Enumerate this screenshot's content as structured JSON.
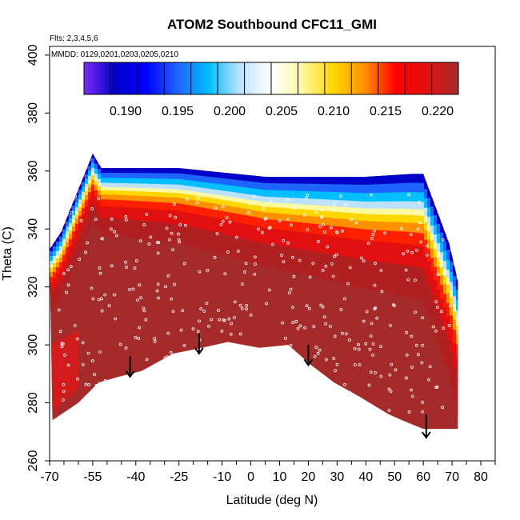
{
  "chart_data": {
    "type": "heatmap",
    "title": "ATOM2 Southbound CFC11_GMI",
    "notes": [
      "Flts: 2,3,4,5,6",
      "MMDD: 0129,0201,0203,0205,0210"
    ],
    "xlabel": "Latitude (deg N)",
    "ylabel": "Theta (C)",
    "xlim": [
      -70,
      85
    ],
    "ylim": [
      260,
      403
    ],
    "x_ticks": [
      -70,
      -55,
      -40,
      -25,
      -10,
      0,
      10,
      20,
      30,
      40,
      50,
      60,
      70,
      80
    ],
    "x_minor_ticks": [
      -65,
      -60,
      -50,
      -45,
      -35,
      -30,
      -20,
      -15,
      -5,
      5,
      15,
      25,
      35,
      45,
      55,
      65,
      75,
      85
    ],
    "y_ticks": [
      260,
      280,
      300,
      320,
      340,
      360,
      380,
      400
    ],
    "colorbar": {
      "range": [
        0.186,
        0.222
      ],
      "ticks": [
        0.19,
        0.195,
        0.2,
        0.205,
        0.21,
        0.215,
        0.22
      ],
      "tick_labels": [
        "0.190",
        "0.195",
        "0.200",
        "0.205",
        "0.210",
        "0.215",
        "0.220"
      ],
      "colors": [
        "#7b2cf6",
        "#0000c8",
        "#0000ff",
        "#1e64ff",
        "#00bfff",
        "#bde2ff",
        "#ffffff",
        "#fff9a0",
        "#ffd700",
        "#ff9000",
        "#ff0000",
        "#e01010",
        "#a52a2a"
      ]
    },
    "surface_boundary": [
      [
        -69,
        274
      ],
      [
        -60,
        280
      ],
      [
        -53,
        287
      ],
      [
        -46,
        289
      ],
      [
        -38,
        291
      ],
      [
        -27,
        297
      ],
      [
        -17,
        299
      ],
      [
        -8,
        301
      ],
      [
        3,
        299
      ],
      [
        13,
        300
      ],
      [
        21,
        293
      ],
      [
        29,
        287
      ],
      [
        38,
        282
      ],
      [
        48,
        276
      ],
      [
        55,
        273
      ],
      [
        60,
        271
      ],
      [
        72,
        271
      ]
    ],
    "top_boundary": [
      [
        -70,
        333
      ],
      [
        -66,
        339
      ],
      [
        -57,
        361
      ],
      [
        -55,
        366
      ],
      [
        -52,
        361
      ],
      [
        -47,
        361
      ],
      [
        -25,
        361
      ],
      [
        5,
        358
      ],
      [
        40,
        358
      ],
      [
        56,
        359
      ],
      [
        60,
        359
      ],
      [
        69,
        335
      ],
      [
        72,
        322
      ]
    ],
    "flight_arrows": [
      {
        "lat": -42,
        "theta_top": 296,
        "theta_bottom": 289
      },
      {
        "lat": -18,
        "theta_top": 304,
        "theta_bottom": 297
      },
      {
        "lat": 20,
        "theta_top": 300,
        "theta_bottom": 293
      },
      {
        "lat": 61,
        "theta_top": 276,
        "theta_bottom": 268
      }
    ]
  }
}
